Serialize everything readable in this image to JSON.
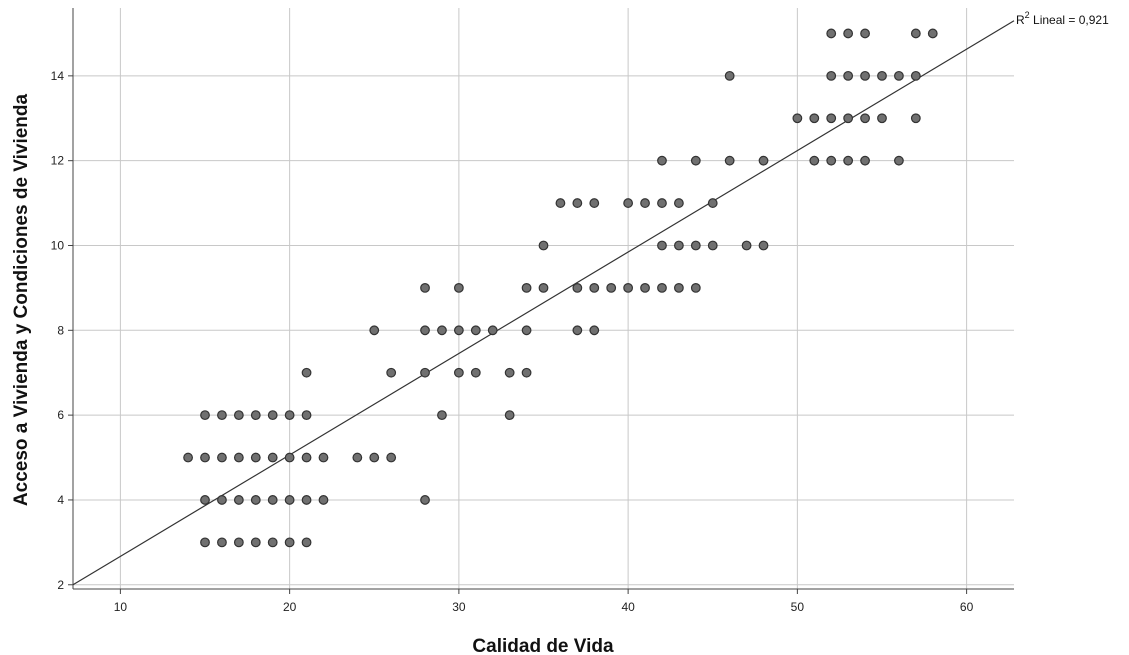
{
  "chart_data": {
    "type": "scatter",
    "xlabel": "Calidad de Vida",
    "ylabel": "Acceso a Vivienda y Condiciones de Vivienda",
    "xlim": [
      7.2,
      62.8
    ],
    "ylim": [
      1.9,
      15.6
    ],
    "xticks": [
      10,
      20,
      30,
      40,
      50,
      60
    ],
    "yticks": [
      2,
      4,
      6,
      8,
      10,
      12,
      14
    ],
    "grid": true,
    "fit_line": {
      "x": [
        7.2,
        62.8
      ],
      "y": [
        2.0,
        15.3
      ]
    },
    "annotation": {
      "r2_prefix": "R",
      "r2_sup": "2",
      "r2_text": " Lineal = 0,921"
    },
    "colors": {
      "point_fill": "#707070",
      "point_stroke": "#333333",
      "grid": "#c8c8c8",
      "fit_line": "#333333"
    },
    "points": [
      [
        52,
        15
      ],
      [
        53,
        15
      ],
      [
        54,
        15
      ],
      [
        57,
        15
      ],
      [
        58,
        15
      ],
      [
        46,
        14
      ],
      [
        52,
        14
      ],
      [
        53,
        14
      ],
      [
        54,
        14
      ],
      [
        55,
        14
      ],
      [
        56,
        14
      ],
      [
        57,
        14
      ],
      [
        50,
        13
      ],
      [
        51,
        13
      ],
      [
        52,
        13
      ],
      [
        53,
        13
      ],
      [
        54,
        13
      ],
      [
        55,
        13
      ],
      [
        57,
        13
      ],
      [
        42,
        12
      ],
      [
        44,
        12
      ],
      [
        46,
        12
      ],
      [
        48,
        12
      ],
      [
        51,
        12
      ],
      [
        52,
        12
      ],
      [
        53,
        12
      ],
      [
        54,
        12
      ],
      [
        56,
        12
      ],
      [
        36,
        11
      ],
      [
        37,
        11
      ],
      [
        38,
        11
      ],
      [
        40,
        11
      ],
      [
        41,
        11
      ],
      [
        42,
        11
      ],
      [
        43,
        11
      ],
      [
        45,
        11
      ],
      [
        35,
        10
      ],
      [
        42,
        10
      ],
      [
        43,
        10
      ],
      [
        44,
        10
      ],
      [
        45,
        10
      ],
      [
        47,
        10
      ],
      [
        48,
        10
      ],
      [
        28,
        9
      ],
      [
        30,
        9
      ],
      [
        34,
        9
      ],
      [
        35,
        9
      ],
      [
        37,
        9
      ],
      [
        38,
        9
      ],
      [
        39,
        9
      ],
      [
        40,
        9
      ],
      [
        41,
        9
      ],
      [
        42,
        9
      ],
      [
        43,
        9
      ],
      [
        44,
        9
      ],
      [
        25,
        8
      ],
      [
        28,
        8
      ],
      [
        29,
        8
      ],
      [
        30,
        8
      ],
      [
        31,
        8
      ],
      [
        32,
        8
      ],
      [
        34,
        8
      ],
      [
        37,
        8
      ],
      [
        38,
        8
      ],
      [
        21,
        7
      ],
      [
        26,
        7
      ],
      [
        28,
        7
      ],
      [
        30,
        7
      ],
      [
        31,
        7
      ],
      [
        33,
        7
      ],
      [
        34,
        7
      ],
      [
        15,
        6
      ],
      [
        16,
        6
      ],
      [
        17,
        6
      ],
      [
        18,
        6
      ],
      [
        19,
        6
      ],
      [
        20,
        6
      ],
      [
        21,
        6
      ],
      [
        29,
        6
      ],
      [
        33,
        6
      ],
      [
        14,
        5
      ],
      [
        15,
        5
      ],
      [
        16,
        5
      ],
      [
        17,
        5
      ],
      [
        18,
        5
      ],
      [
        19,
        5
      ],
      [
        20,
        5
      ],
      [
        21,
        5
      ],
      [
        22,
        5
      ],
      [
        24,
        5
      ],
      [
        25,
        5
      ],
      [
        26,
        5
      ],
      [
        15,
        4
      ],
      [
        16,
        4
      ],
      [
        17,
        4
      ],
      [
        18,
        4
      ],
      [
        19,
        4
      ],
      [
        20,
        4
      ],
      [
        21,
        4
      ],
      [
        22,
        4
      ],
      [
        28,
        4
      ],
      [
        15,
        3
      ],
      [
        16,
        3
      ],
      [
        17,
        3
      ],
      [
        18,
        3
      ],
      [
        19,
        3
      ],
      [
        20,
        3
      ],
      [
        21,
        3
      ]
    ]
  }
}
